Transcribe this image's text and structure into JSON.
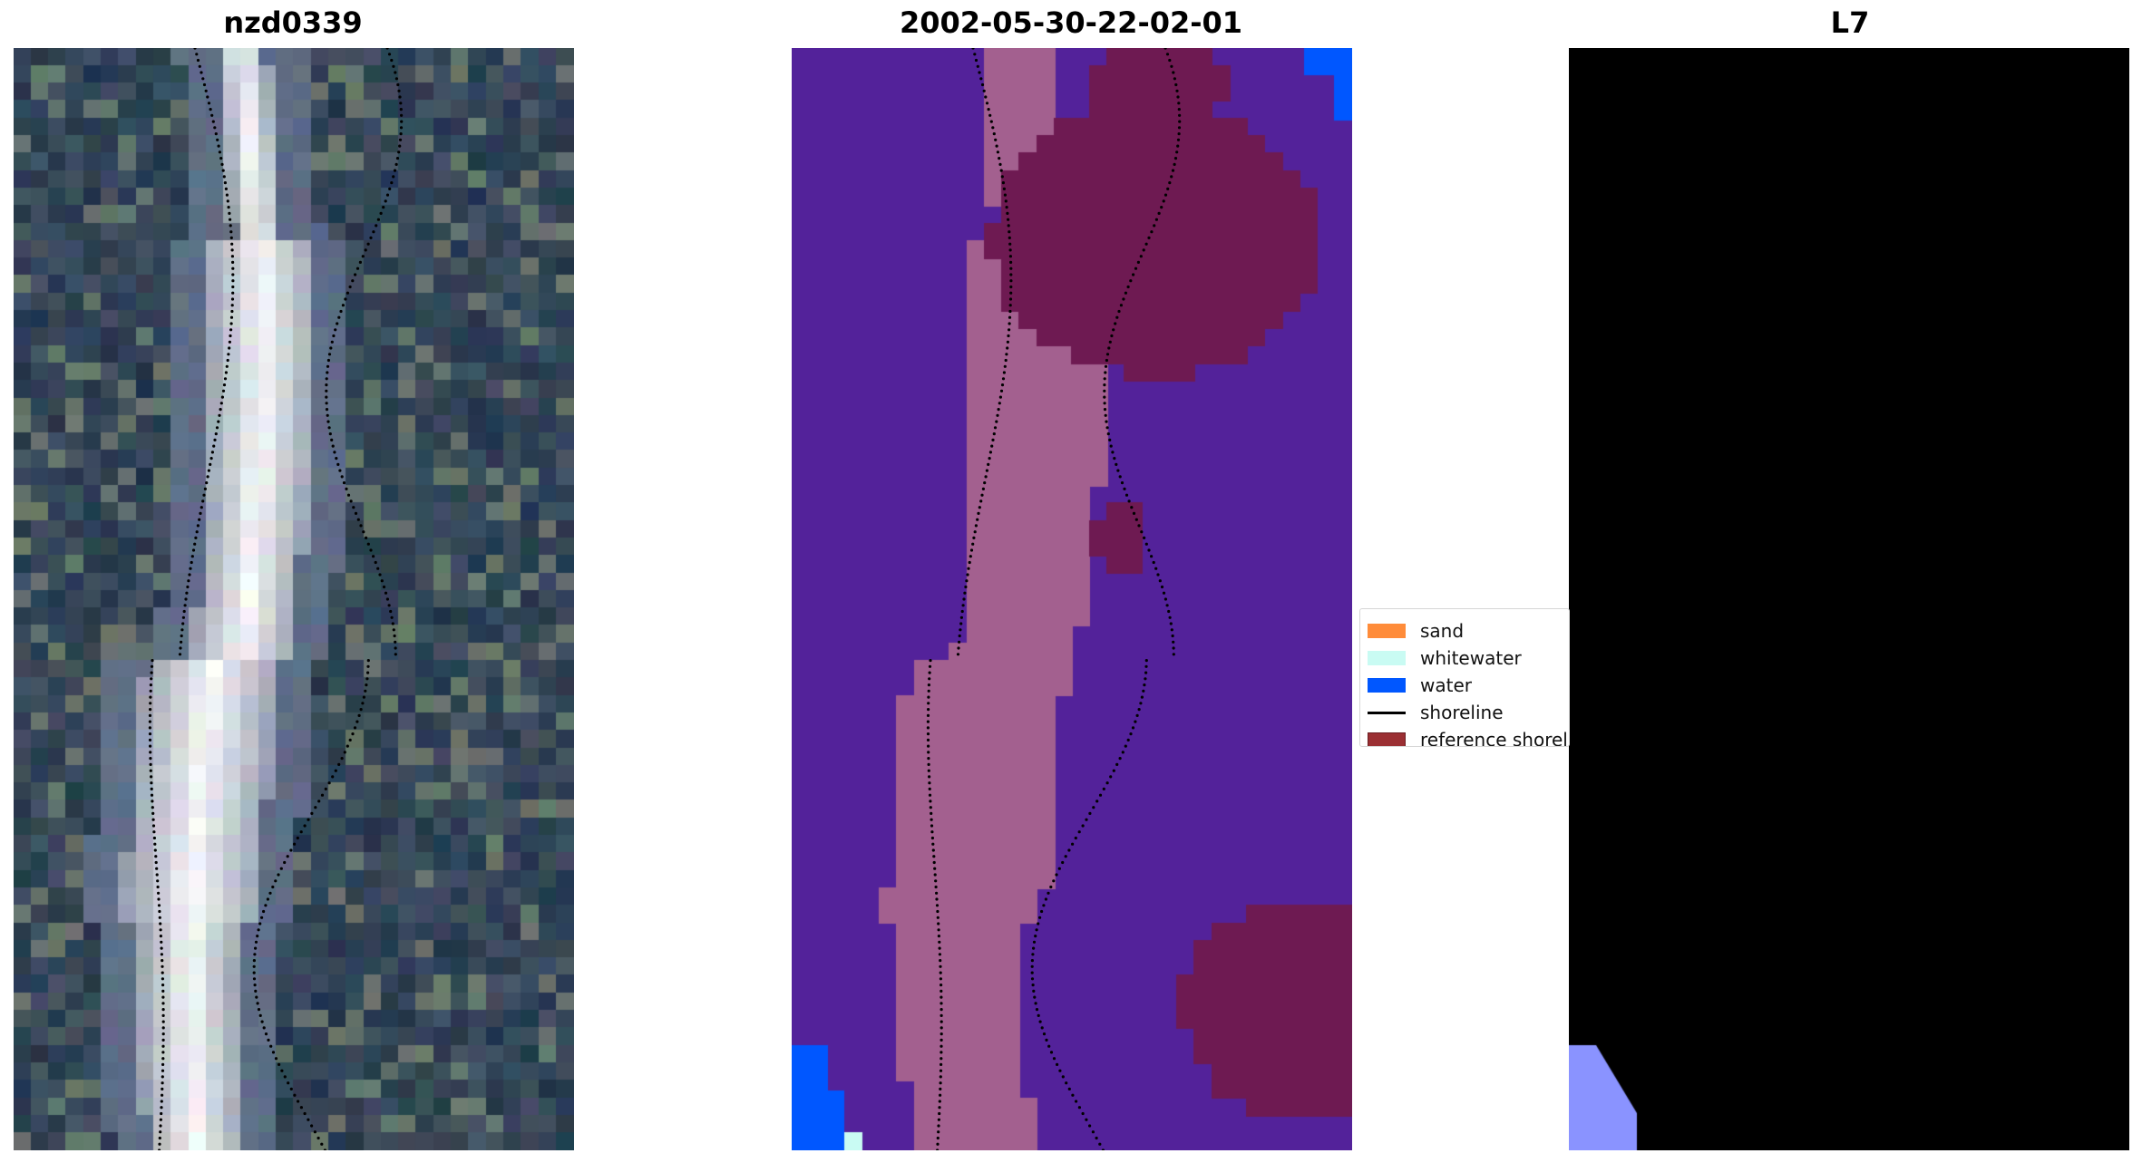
{
  "panels": {
    "left": {
      "title": "nzd0339",
      "content": "RGB satellite image"
    },
    "middle": {
      "title": "2002-05-30-22-02-01",
      "content": "classification map"
    },
    "right": {
      "title": "L7",
      "content": "index image"
    }
  },
  "legend": {
    "items": [
      {
        "label": "sand",
        "type": "patch",
        "color": "#ff8c3a"
      },
      {
        "label": "whitewater",
        "type": "patch",
        "color": "#c9fbf3"
      },
      {
        "label": "water",
        "type": "patch",
        "color": "#0057ff"
      },
      {
        "label": "shoreline",
        "type": "line",
        "color": "#000000"
      },
      {
        "label": "reference shoreline",
        "type": "patch",
        "color": "#9b2f33"
      }
    ]
  },
  "colors": {
    "class_background": "#53229a",
    "class_sand_band": "#a3608f",
    "class_reference_region": "#6e1a52",
    "class_water": "#0057ff",
    "shoreline_dots": "#000000"
  }
}
